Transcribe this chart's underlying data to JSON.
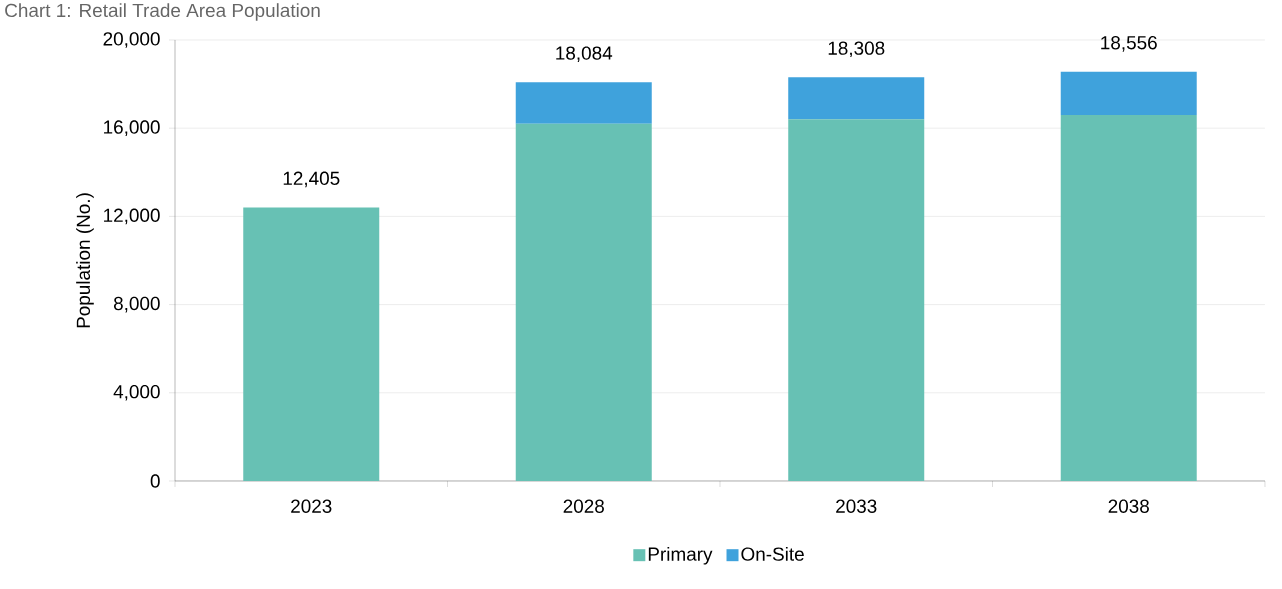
{
  "chart_data": {
    "type": "bar",
    "stacked": true,
    "title": "Chart 1: Retail Trade Area Population",
    "ylabel": "Population (No.)",
    "categories": [
      "2023",
      "2028",
      "2033",
      "2038"
    ],
    "series": [
      {
        "name": "Primary",
        "color": "#67c1b4",
        "values": [
          12405,
          16200,
          16400,
          16600
        ]
      },
      {
        "name": "On-Site",
        "color": "#3fa2dc",
        "values": [
          null,
          1884,
          1908,
          1956
        ]
      }
    ],
    "totals": [
      "12,405",
      "18,084",
      "18,308",
      "18,556"
    ],
    "ylim": [
      0,
      20000
    ],
    "yticks": [
      0,
      {
        "value": 4000,
        "label": "4,000"
      },
      {
        "value": 8000,
        "label": "8,000"
      },
      {
        "value": 12000,
        "label": "12,000"
      },
      {
        "value": 16000,
        "label": "16,000"
      },
      {
        "value": 20000,
        "label": "20,000"
      }
    ],
    "grid": "y",
    "legend": "bottom"
  }
}
